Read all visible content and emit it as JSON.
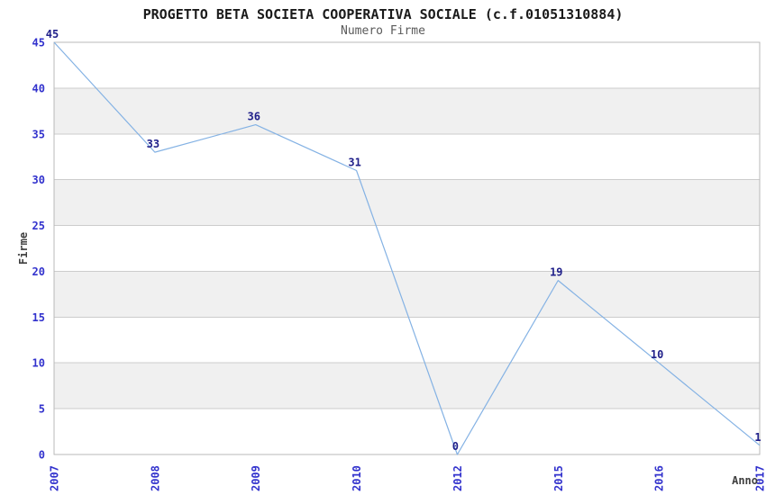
{
  "chart_data": {
    "type": "line",
    "title": "PROGETTO BETA SOCIETA COOPERATIVA SOCIALE (c.f.01051310884)",
    "subtitle": "Numero Firme",
    "categories": [
      "2007",
      "2008",
      "2009",
      "2010",
      "2012",
      "2015",
      "2016",
      "2017"
    ],
    "series": [
      {
        "name": "Numero Firme",
        "values": [
          45,
          33,
          36,
          31,
          0,
          19,
          10,
          1
        ]
      }
    ],
    "xlabel": "Anno",
    "ylabel": "Firme",
    "ylim": [
      0,
      45
    ],
    "yticks": [
      0,
      5,
      10,
      15,
      20,
      25,
      30,
      35,
      40,
      45
    ],
    "grid": true,
    "legend": "none",
    "bands": [
      [
        5,
        10
      ],
      [
        15,
        20
      ],
      [
        25,
        30
      ],
      [
        35,
        40
      ]
    ],
    "point_labels": true,
    "colors": {
      "line": "#84b2e4",
      "tick_label": "#3232cd",
      "point_label": "#20208a",
      "grid_line": "#cccccc",
      "band_fill": "#f0f0f0",
      "frame": "#b9b9b9",
      "axis_title": "#3f3f3f",
      "title": "#1a1a1a",
      "subtitle": "#5a5a5a",
      "background": "#ffffff"
    }
  }
}
